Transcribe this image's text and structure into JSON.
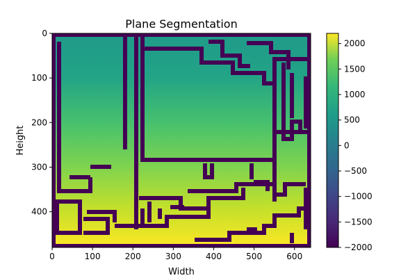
{
  "chart_data": {
    "type": "heatmap",
    "title": "Plane Segmentation",
    "xlabel": "Width",
    "ylabel": "Height",
    "xlim": [
      0,
      640
    ],
    "ylim": [
      480,
      0
    ],
    "xticks": [
      "0",
      "100",
      "200",
      "300",
      "400",
      "500",
      "600"
    ],
    "yticks": [
      "0",
      "100",
      "200",
      "300",
      "400"
    ],
    "colorbar": {
      "colormap": "viridis",
      "vmin": -2000,
      "vmax": 2200,
      "ticks": [
        "2000",
        "1500",
        "1000",
        "500",
        "0",
        "−500",
        "−1000",
        "−1500",
        "−2000"
      ]
    },
    "background_value": -2000,
    "gradient": {
      "description": "vertical depth gradient, roughly constant per row",
      "rows": [
        0,
        100,
        200,
        300,
        400,
        480
      ],
      "values": [
        700,
        900,
        1150,
        1450,
        1850,
        2200
      ]
    },
    "boundary_value": -2000,
    "colors": {
      "viridis_low": "#440154",
      "viridis_mid": "#21918c",
      "viridis_high": "#fde725"
    }
  }
}
